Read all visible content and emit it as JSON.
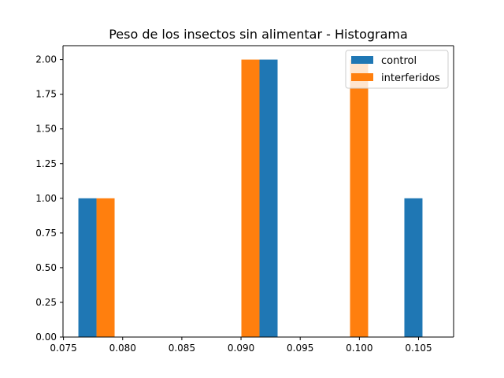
{
  "chart_data": {
    "type": "bar",
    "title": "Peso de los insectos sin alimentar - Histograma",
    "xlabel": "",
    "ylabel": "",
    "xlim": [
      0.07496,
      0.10796
    ],
    "ylim": [
      0,
      2.1
    ],
    "x_ticks": [
      0.075,
      0.08,
      0.085,
      0.09,
      0.095,
      0.1,
      0.105
    ],
    "x_tick_labels": [
      "0.075",
      "0.080",
      "0.085",
      "0.090",
      "0.095",
      "0.100",
      "0.105"
    ],
    "y_ticks": [
      0.0,
      0.25,
      0.5,
      0.75,
      1.0,
      1.25,
      1.5,
      1.75,
      2.0
    ],
    "y_tick_labels": [
      "0.00",
      "0.25",
      "0.50",
      "0.75",
      "1.00",
      "1.25",
      "1.50",
      "1.75",
      "2.00"
    ],
    "bar_width": 0.00153,
    "grid": false,
    "legend_position": "top-right",
    "series": [
      {
        "name": "control",
        "color": "#1f77b4",
        "bars": [
          {
            "x": 0.07626,
            "count": 1
          },
          {
            "x": 0.07932,
            "count": 0
          },
          {
            "x": 0.08238,
            "count": 0
          },
          {
            "x": 0.08544,
            "count": 0
          },
          {
            "x": 0.0885,
            "count": 0
          },
          {
            "x": 0.09156,
            "count": 2
          },
          {
            "x": 0.09462,
            "count": 0
          },
          {
            "x": 0.09768,
            "count": 0
          },
          {
            "x": 0.10074,
            "count": 0
          },
          {
            "x": 0.1038,
            "count": 1
          }
        ]
      },
      {
        "name": "interferidos",
        "color": "#ff7f0e",
        "bars": [
          {
            "x": 0.07779,
            "count": 1
          },
          {
            "x": 0.08085,
            "count": 0
          },
          {
            "x": 0.08391,
            "count": 0
          },
          {
            "x": 0.08697,
            "count": 0
          },
          {
            "x": 0.09003,
            "count": 2
          },
          {
            "x": 0.09309,
            "count": 0
          },
          {
            "x": 0.09615,
            "count": 0
          },
          {
            "x": 0.09921,
            "count": 2
          },
          {
            "x": 0.10227,
            "count": 0
          },
          {
            "x": 0.10533,
            "count": 0
          }
        ]
      }
    ]
  }
}
